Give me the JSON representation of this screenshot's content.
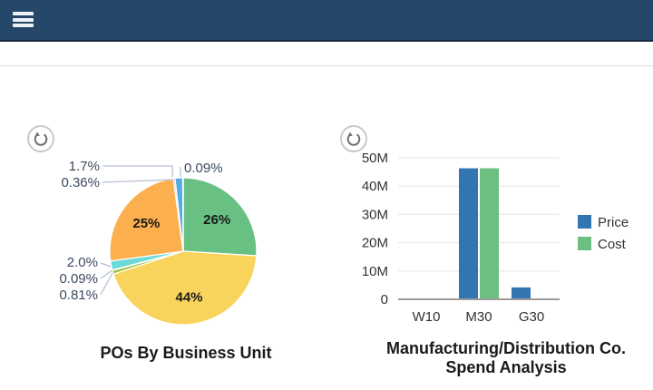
{
  "header": {
    "background_color": "#24476a",
    "menu_icon": "hamburger-icon"
  },
  "charts": {
    "pie": {
      "title": "POs By Business Unit",
      "refresh_icon": "refresh-icon"
    },
    "bar": {
      "title_line1": "Manufacturing/Distribution Co.",
      "title_line2": "Spend Analysis",
      "refresh_icon": "refresh-icon"
    }
  },
  "chart_data": [
    {
      "type": "pie",
      "title": "POs By Business Unit",
      "start_angle": "top",
      "direction": "clockwise",
      "slices": [
        {
          "label": "26%",
          "value": 26,
          "color": "#68c182",
          "label_placement": "inside"
        },
        {
          "label": "44%",
          "value": 44,
          "color": "#f8d45c",
          "label_placement": "inside"
        },
        {
          "label": "0.81%",
          "value": 0.81,
          "color": "#a2bf39",
          "label_placement": "outside"
        },
        {
          "label": "0.09%",
          "value": 0.09,
          "color": "#ed5f4e",
          "label_placement": "outside"
        },
        {
          "label": "2.0%",
          "value": 2.0,
          "color": "#6cd9d9",
          "label_placement": "outside"
        },
        {
          "label": "25%",
          "value": 25,
          "color": "#fcaf4e",
          "label_placement": "inside"
        },
        {
          "label": "0.36%",
          "value": 0.36,
          "color": "#e371b2",
          "label_placement": "outside"
        },
        {
          "label": "1.7%",
          "value": 1.7,
          "color": "#54abdf",
          "label_placement": "outside"
        },
        {
          "label": "0.09%",
          "value": 0.09,
          "color": "#8561c8",
          "label_placement": "outside"
        }
      ]
    },
    {
      "type": "bar",
      "title": "Manufacturing/Distribution Co. Spend Analysis",
      "categories": [
        "W10",
        "M30",
        "G30"
      ],
      "series": [
        {
          "name": "Price",
          "color": "#3276b1",
          "values": [
            0,
            46.3,
            4.2
          ]
        },
        {
          "name": "Cost",
          "color": "#6cbe81",
          "values": [
            0,
            46.3,
            0
          ]
        }
      ],
      "y_unit": "M",
      "ylim": [
        0,
        50
      ],
      "yticks": [
        "50M",
        "40M",
        "30M",
        "20M",
        "10M",
        "0"
      ],
      "grid": true,
      "legend_position": "right"
    }
  ]
}
